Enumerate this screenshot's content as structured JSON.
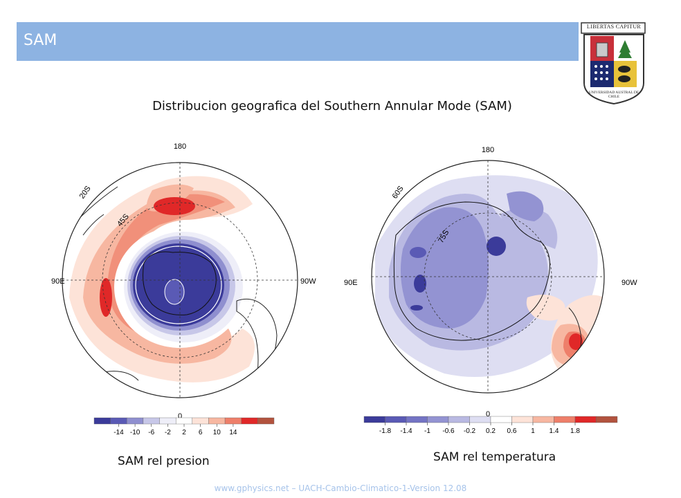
{
  "header": {
    "title": "SAM",
    "bar_color": "#8db3e2"
  },
  "logo": {
    "motto": "LIBERTAS CAPITUR",
    "ring_text": "UNIVERSIDAD AUSTRAL DE CHILE"
  },
  "subtitle": "Distribucion geografica del Southern Annular Mode (SAM)",
  "maps": {
    "left": {
      "label": "SAM rel presion",
      "lon_labels": {
        "top": "180",
        "bottom": "0",
        "left": "90E",
        "right": "90W"
      },
      "lat_labels": [
        "20S",
        "45S"
      ],
      "colorbar_ticks": [
        "-14",
        "-10",
        "-6",
        "-2",
        "2",
        "6",
        "10",
        "14"
      ],
      "colorbar_colors": [
        "#3b3b9a",
        "#5a5ab5",
        "#8f8fcf",
        "#c7c7e8",
        "#eeeef8",
        "#ffffff",
        "#fde3d8",
        "#f7b7a1",
        "#ee7f6a",
        "#e02828",
        "#b2533e"
      ]
    },
    "right": {
      "label": "SAM rel temperatura",
      "lon_labels": {
        "top": "180",
        "bottom": "0",
        "left": "90E",
        "right": "90W"
      },
      "lat_labels": [
        "60S",
        "75S"
      ],
      "colorbar_ticks": [
        "-1.8",
        "-1.4",
        "-1",
        "-0.6",
        "-0.2",
        "0.2",
        "0.6",
        "1",
        "1.4",
        "1.8"
      ],
      "colorbar_colors": [
        "#3b3b9a",
        "#5a5ab5",
        "#7474c4",
        "#9393d2",
        "#b9b9e2",
        "#dedef2",
        "#ffffff",
        "#fde3d8",
        "#f7b7a1",
        "#ee7f6a",
        "#e02828",
        "#b2533e"
      ]
    }
  },
  "footer": "www.gphysics.net – UACH-Cambio-Climatico-1-Version 12.08"
}
